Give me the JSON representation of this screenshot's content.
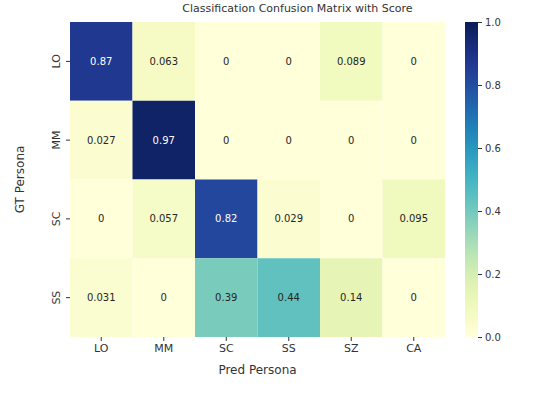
{
  "chart_data": {
    "type": "heatmap",
    "title": "Classification Confusion Matrix with Score",
    "xlabel": "Pred Persona",
    "ylabel": "GT Persona",
    "x_categories": [
      "LO",
      "MM",
      "SC",
      "SS",
      "SZ",
      "CA"
    ],
    "y_categories": [
      "LO",
      "MM",
      "SC",
      "SS"
    ],
    "cells": [
      [
        0.87,
        0.063,
        0,
        0,
        0.089,
        0
      ],
      [
        0.027,
        0.97,
        0,
        0,
        0,
        0
      ],
      [
        0,
        0.057,
        0.82,
        0.029,
        0,
        0.095
      ],
      [
        0.031,
        0,
        0.39,
        0.44,
        0.14,
        0
      ]
    ],
    "color": "YlGnBu",
    "color_range": [
      0,
      1
    ],
    "color_ticks": [
      {
        "value": 0,
        "label": "0.0"
      },
      0.2,
      0.4,
      0.6,
      0.8,
      {
        "value": 1,
        "label": "1.0"
      }
    ],
    "data_labels": true
  }
}
